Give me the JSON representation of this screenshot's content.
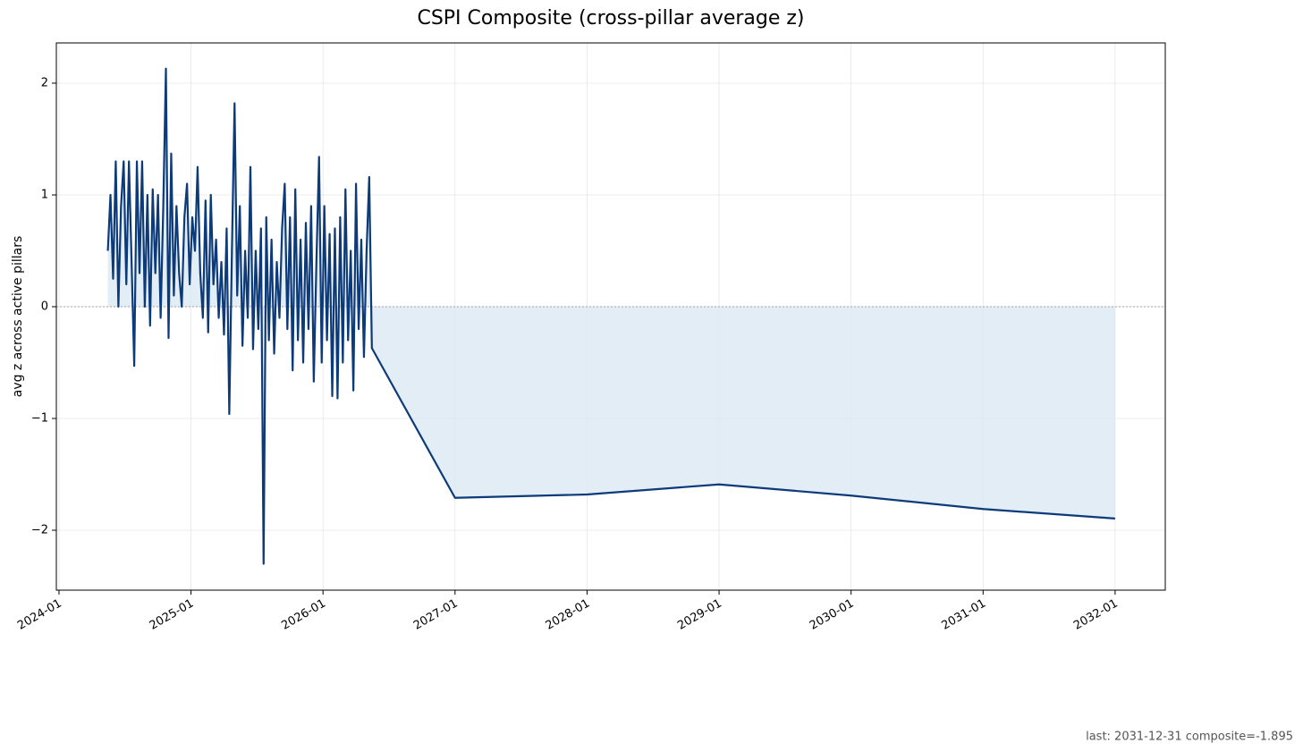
{
  "chart_data": {
    "type": "line",
    "title": "CSPI Composite (cross-pillar average z)",
    "ylabel": "avg z across active pillars",
    "annotation": "last: 2031-12-31  composite=-1.895",
    "color": "#0d3a78",
    "fill_color": "#dbe9f4",
    "grid": true,
    "zero_line": true,
    "x": [
      2024.37,
      2024.39,
      2024.41,
      2024.43,
      2024.45,
      2024.47,
      2024.49,
      2024.51,
      2024.53,
      2024.55,
      2024.57,
      2024.59,
      2024.61,
      2024.63,
      2024.65,
      2024.67,
      2024.69,
      2024.71,
      2024.73,
      2024.75,
      2024.77,
      2024.79,
      2024.81,
      2024.83,
      2024.85,
      2024.87,
      2024.89,
      2024.91,
      2024.93,
      2024.95,
      2024.97,
      2024.99,
      2025.01,
      2025.03,
      2025.05,
      2025.07,
      2025.09,
      2025.11,
      2025.13,
      2025.15,
      2025.17,
      2025.19,
      2025.21,
      2025.23,
      2025.25,
      2025.27,
      2025.29,
      2025.31,
      2025.33,
      2025.35,
      2025.37,
      2025.39,
      2025.41,
      2025.43,
      2025.45,
      2025.47,
      2025.49,
      2025.51,
      2025.53,
      2025.55,
      2025.57,
      2025.59,
      2025.61,
      2025.63,
      2025.65,
      2025.67,
      2025.69,
      2025.71,
      2025.73,
      2025.75,
      2025.77,
      2025.79,
      2025.81,
      2025.83,
      2025.85,
      2025.87,
      2025.89,
      2025.91,
      2025.93,
      2025.95,
      2025.97,
      2025.99,
      2026.01,
      2026.03,
      2026.05,
      2026.07,
      2026.09,
      2026.11,
      2026.13,
      2026.15,
      2026.17,
      2026.19,
      2026.21,
      2026.23,
      2026.25,
      2026.27,
      2026.29,
      2026.31,
      2026.33,
      2026.35,
      2026.37,
      2027.0,
      2028.0,
      2029.0,
      2030.0,
      2031.0,
      2032.0
    ],
    "values": [
      0.5,
      1.0,
      0.25,
      1.3,
      0.0,
      0.9,
      1.3,
      0.2,
      1.3,
      0.4,
      -0.53,
      1.3,
      0.3,
      1.3,
      0.0,
      1.0,
      -0.17,
      1.05,
      0.3,
      1.0,
      -0.1,
      0.9,
      2.13,
      -0.28,
      1.37,
      0.1,
      0.9,
      0.3,
      0.0,
      0.8,
      1.1,
      0.2,
      0.8,
      0.5,
      1.25,
      0.3,
      -0.1,
      0.95,
      -0.23,
      1.0,
      0.2,
      0.6,
      -0.1,
      0.4,
      -0.25,
      0.7,
      -0.96,
      0.5,
      1.82,
      0.1,
      0.9,
      -0.35,
      0.5,
      -0.1,
      1.25,
      -0.38,
      0.5,
      -0.2,
      0.7,
      -2.3,
      0.8,
      -0.3,
      0.6,
      -0.42,
      0.4,
      -0.1,
      0.7,
      1.1,
      -0.2,
      0.8,
      -0.57,
      1.05,
      -0.3,
      0.6,
      -0.5,
      0.75,
      -0.2,
      0.9,
      -0.67,
      0.4,
      1.34,
      -0.5,
      0.9,
      -0.3,
      0.65,
      -0.8,
      0.7,
      -0.82,
      0.8,
      -0.5,
      1.05,
      -0.3,
      0.5,
      -0.75,
      1.1,
      -0.2,
      0.6,
      -0.45,
      0.5,
      1.16,
      -0.37,
      -1.71,
      -1.68,
      -1.59,
      -1.69,
      -1.81,
      -1.895
    ],
    "xlim": [
      2023.98,
      2032.38
    ],
    "xticks": [
      {
        "value": 2024,
        "label": "2024-01"
      },
      {
        "value": 2025,
        "label": "2025-01"
      },
      {
        "value": 2026,
        "label": "2026-01"
      },
      {
        "value": 2027,
        "label": "2027-01"
      },
      {
        "value": 2028,
        "label": "2028-01"
      },
      {
        "value": 2029,
        "label": "2029-01"
      },
      {
        "value": 2030,
        "label": "2030-01"
      },
      {
        "value": 2031,
        "label": "2031-01"
      },
      {
        "value": 2032,
        "label": "2032-01"
      }
    ],
    "ylim": [
      -2.536,
      2.36
    ],
    "yticks": [
      {
        "value": -2,
        "label": "−2"
      },
      {
        "value": -1,
        "label": "−1"
      },
      0,
      1,
      2
    ]
  }
}
